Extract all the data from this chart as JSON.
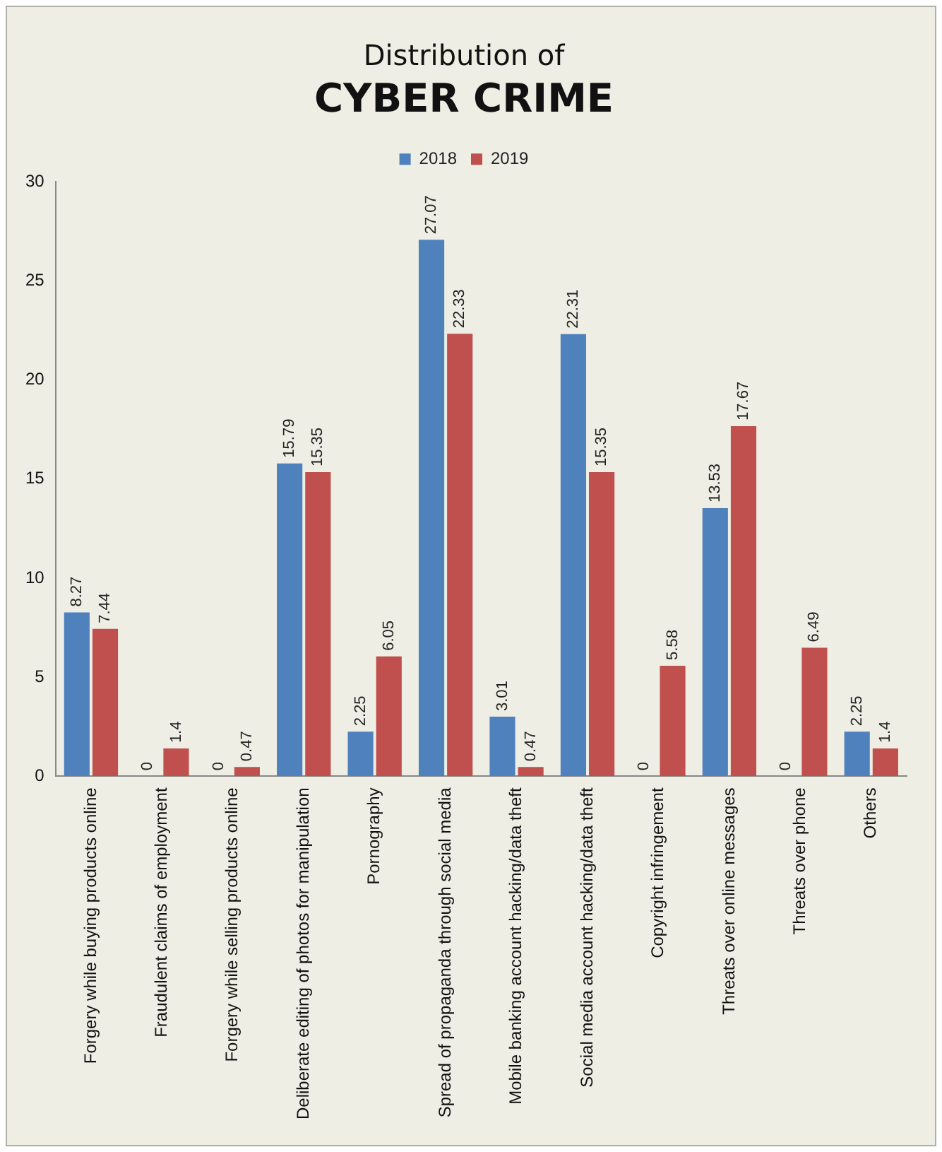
{
  "chart_data": {
    "type": "bar",
    "title": "Distribution of",
    "subtitle": "CYBER CRIME",
    "categories": [
      "Forgery while buying products online",
      "Fraudulent claims of employment",
      "Forgery while selling products online",
      "Deliberate editing of photos for manipulation",
      "Pornography",
      "Spread of propaganda through social media",
      "Mobile banking account hacking/data theft",
      "Social media account hacking/data theft",
      "Copyright infringement",
      "Threats over online messages",
      "Threats over phone",
      "Others"
    ],
    "series": [
      {
        "name": "2018",
        "color": "#4f81bd",
        "values": [
          8.27,
          0,
          0,
          15.79,
          2.25,
          27.07,
          3.01,
          22.31,
          0,
          13.53,
          0,
          2.25
        ]
      },
      {
        "name": "2019",
        "color": "#c0504d",
        "values": [
          7.44,
          1.4,
          0.47,
          15.35,
          6.05,
          22.33,
          0.47,
          15.35,
          5.58,
          17.67,
          6.49,
          1.4
        ]
      }
    ],
    "ylim": [
      0,
      30
    ],
    "yticks": [
      0,
      5,
      10,
      15,
      20,
      25,
      30
    ],
    "grid": false,
    "legend": "top",
    "data_labels": true
  }
}
